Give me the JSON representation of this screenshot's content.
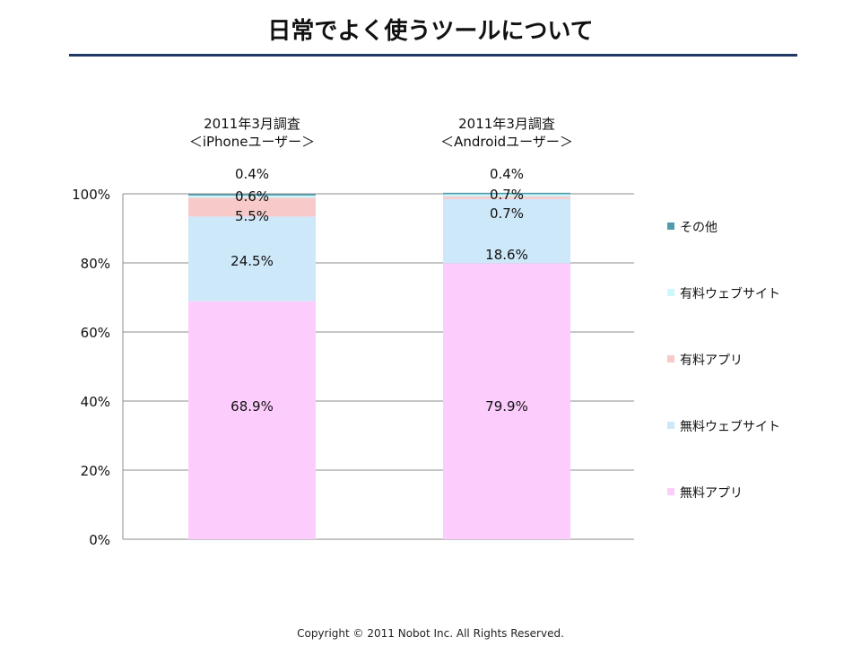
{
  "page": {
    "title": "日常でよく使うツールについて",
    "copyright": "Copyright © 2011 Nobot Inc. All Rights Reserved."
  },
  "chart_data": {
    "type": "bar",
    "stacked": true,
    "categories": [
      "2011年3月調査\n＜iPhoneユーザー＞",
      "2011年3月調査\n＜Androidユーザー＞"
    ],
    "series": [
      {
        "name": "無料アプリ",
        "values": [
          68.9,
          79.9
        ],
        "labels": [
          "68.9%",
          "79.9%"
        ],
        "color": "#fccdfc"
      },
      {
        "name": "無料ウェブサイト",
        "values": [
          24.5,
          18.6
        ],
        "labels": [
          "24.5%",
          "18.6%"
        ],
        "color": "#cde8f9"
      },
      {
        "name": "有料アプリ",
        "values": [
          5.5,
          0.7
        ],
        "labels": [
          "5.5%",
          "0.7%"
        ],
        "color": "#f7c9c9"
      },
      {
        "name": "有料ウェブサイト",
        "values": [
          0.6,
          0.7
        ],
        "labels": [
          "0.6%",
          "0.7%"
        ],
        "color": "#ccf7fc"
      },
      {
        "name": "その他",
        "values": [
          0.4,
          0.4
        ],
        "labels": [
          "0.4%",
          "0.4%"
        ],
        "color": "#4f9aab"
      }
    ],
    "ylim": [
      0,
      100
    ],
    "yticks": [
      "0%",
      "20%",
      "40%",
      "60%",
      "80%",
      "100%"
    ],
    "grid": true,
    "legend_position": "right"
  }
}
